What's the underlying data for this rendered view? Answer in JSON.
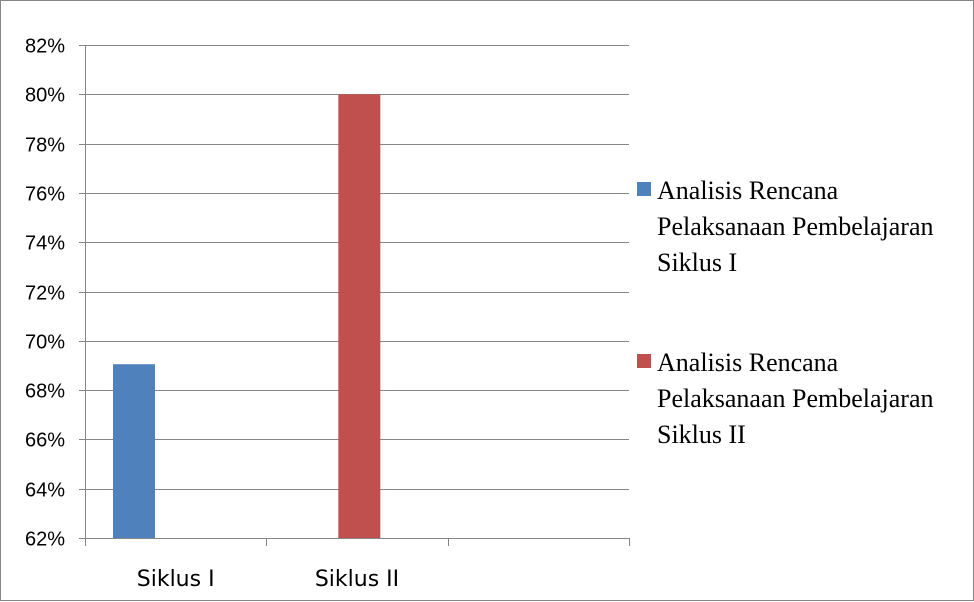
{
  "chart_data": {
    "type": "bar",
    "categories": [
      "Siklus I",
      "Siklus II"
    ],
    "slots": 3,
    "series": [
      {
        "name": "Analisis Rencana Pelaksanaan Pembelajaran Siklus I",
        "legend_lines": [
          "Analisis Rencana",
          "Pelaksanaan Pembelajaran",
          "Siklus I"
        ],
        "color": "#4F81BD",
        "values": [
          0.6905,
          null
        ]
      },
      {
        "name": "Analisis Rencana Pelaksanaan Pembelajaran Siklus II",
        "legend_lines": [
          "Analisis Rencana",
          "Pelaksanaan Pembelajaran",
          "Siklus II"
        ],
        "color": "#C0504D",
        "values": [
          null,
          0.8
        ]
      }
    ],
    "ylim": [
      0.62,
      0.82
    ],
    "ytick_step": 0.02,
    "ytick_labels": [
      "62%",
      "64%",
      "66%",
      "68%",
      "70%",
      "72%",
      "74%",
      "76%",
      "78%",
      "80%",
      "82%"
    ],
    "grid": true,
    "legend": "right",
    "title": "",
    "xlabel": "",
    "ylabel": ""
  }
}
